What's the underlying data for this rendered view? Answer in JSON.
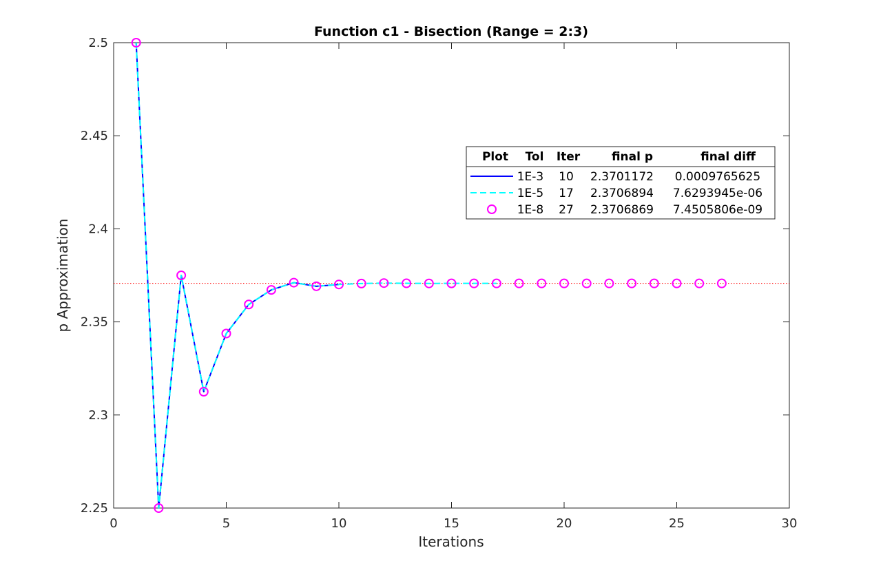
{
  "chart_data": {
    "type": "line",
    "title": "Function c1 - Bisection (Range = 2:3)",
    "xlabel": "Iterations",
    "ylabel": "p Approximation",
    "xlim": [
      0,
      30
    ],
    "ylim": [
      2.25,
      2.5
    ],
    "xticks": [
      "0",
      "5",
      "10",
      "15",
      "20",
      "25",
      "30"
    ],
    "yticks": [
      "2.25",
      "2.3",
      "2.35",
      "2.4",
      "2.45",
      "2.5"
    ],
    "reference_line": {
      "y": 2.3706869,
      "color": "#ff0000",
      "style": "dotted"
    },
    "legend": {
      "placement": "upper-right",
      "headers": [
        "Plot",
        "Tol",
        "Iter",
        "final p",
        "final diff"
      ],
      "rows": [
        {
          "tol": "1E-3",
          "iter": "10",
          "final_p": "2.3701172",
          "final_diff": "0.0009765625"
        },
        {
          "tol": "1E-5",
          "iter": "17",
          "final_p": "2.3706894",
          "final_diff": "7.6293945e-06"
        },
        {
          "tol": "1E-8",
          "iter": "27",
          "final_p": "2.3706869",
          "final_diff": "7.4505806e-09"
        }
      ]
    },
    "series": [
      {
        "style": "solid",
        "color": "#0000ff",
        "x": [
          1,
          2,
          3,
          4,
          5,
          6,
          7,
          8,
          9,
          10
        ],
        "y": [
          2.5,
          2.25,
          2.375,
          2.3125,
          2.34375,
          2.359375,
          2.3671875,
          2.37109375,
          2.369140625,
          2.3701171875
        ]
      },
      {
        "style": "dashed",
        "color": "#00ffff",
        "x": [
          1,
          2,
          3,
          4,
          5,
          6,
          7,
          8,
          9,
          10,
          11,
          12,
          13,
          14,
          15,
          16,
          17
        ],
        "y": [
          2.5,
          2.25,
          2.375,
          2.3125,
          2.34375,
          2.359375,
          2.3671875,
          2.37109375,
          2.369140625,
          2.3701171875,
          2.37060546875,
          2.370849609375,
          2.3707275390625,
          2.37066650390625,
          2.370697021484375,
          2.3706817626953125,
          2.3706893920898438
        ]
      },
      {
        "style": "markers",
        "color": "#ff00ff",
        "x": [
          1,
          2,
          3,
          4,
          5,
          6,
          7,
          8,
          9,
          10,
          11,
          12,
          13,
          14,
          15,
          16,
          17,
          18,
          19,
          20,
          21,
          22,
          23,
          24,
          25,
          26,
          27
        ],
        "y": [
          2.5,
          2.25,
          2.375,
          2.3125,
          2.34375,
          2.359375,
          2.3671875,
          2.37109375,
          2.369140625,
          2.3701171875,
          2.37060546875,
          2.370849609375,
          2.3707275390625,
          2.37066650390625,
          2.370697021484375,
          2.3706817626953125,
          2.3706893920898438,
          2.370685577392578,
          2.37068748474121,
          2.370686531066895,
          2.370687007904053,
          2.370686769485474,
          2.370686888694763,
          2.370686829090118,
          2.370686858892441,
          2.370686873793602,
          2.370686866343021
        ]
      }
    ]
  }
}
